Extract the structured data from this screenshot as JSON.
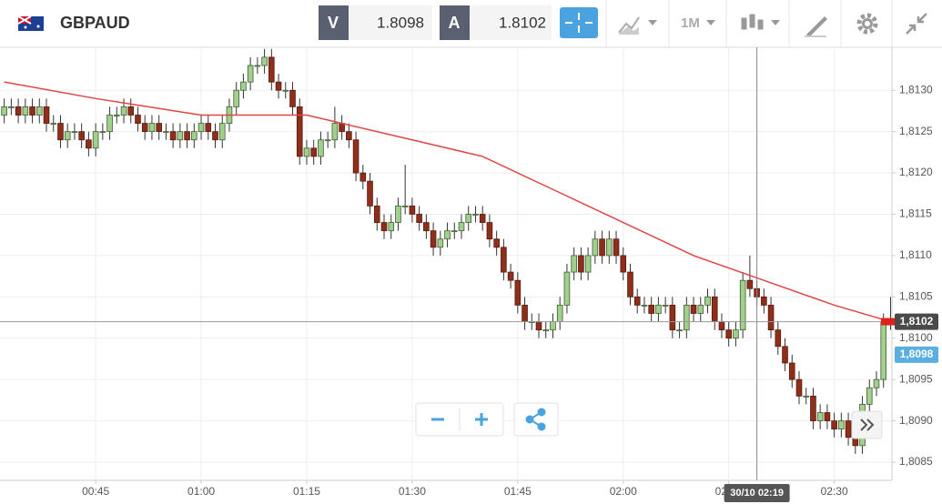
{
  "toolbar": {
    "symbol": "GBPAUD",
    "bid_label": "V",
    "bid": "1.8098",
    "ask_label": "A",
    "ask": "1.8102",
    "timeframe": "1M"
  },
  "chart_data": {
    "type": "candlestick",
    "x": [
      32,
      33,
      34,
      35,
      36,
      37,
      38,
      39,
      40,
      41,
      42,
      43,
      44,
      45,
      46,
      47,
      48,
      49,
      50,
      51,
      52,
      53,
      54,
      55,
      56,
      57,
      58,
      59,
      60,
      61,
      62,
      63,
      64,
      65,
      66,
      67,
      68,
      69,
      70,
      71,
      72,
      73,
      74,
      75,
      76,
      77,
      78,
      79,
      80,
      81,
      82,
      83,
      84,
      85,
      86,
      87,
      88,
      89,
      90,
      91,
      92,
      93,
      94,
      95,
      96,
      97,
      98,
      99,
      100,
      101,
      102,
      103,
      104,
      105,
      106,
      107,
      108,
      109,
      110,
      111,
      112,
      113,
      114,
      115,
      116,
      117,
      118,
      119,
      120,
      121,
      122,
      123,
      124,
      125,
      126,
      127,
      128,
      129,
      130,
      131,
      132,
      133,
      134,
      135,
      136,
      137,
      138,
      139,
      140,
      141,
      142,
      143,
      144,
      145,
      146,
      147,
      148,
      149,
      150,
      151,
      152,
      153,
      154,
      155,
      156,
      157,
      158
    ],
    "open": [
      1.8127,
      1.8128,
      1.8128,
      1.8127,
      1.8128,
      1.8127,
      1.8128,
      1.8126,
      1.8126,
      1.8124,
      1.8125,
      1.8125,
      1.8124,
      1.8123,
      1.8125,
      1.8125,
      1.8127,
      1.8127,
      1.8128,
      1.8127,
      1.8126,
      1.8125,
      1.8126,
      1.8125,
      1.8125,
      1.8124,
      1.8125,
      1.8124,
      1.8125,
      1.8126,
      1.8125,
      1.8124,
      1.8126,
      1.8128,
      1.813,
      1.8131,
      1.8133,
      1.8133,
      1.8134,
      1.8131,
      1.813,
      1.813,
      1.8128,
      1.8122,
      1.8123,
      1.8122,
      1.8124,
      1.8124,
      1.8126,
      1.8125,
      1.8124,
      1.812,
      1.8119,
      1.8116,
      1.8114,
      1.8113,
      1.8114,
      1.8116,
      1.8116,
      1.8115,
      1.8114,
      1.8113,
      1.8111,
      1.8112,
      1.8113,
      1.8113,
      1.8114,
      1.8115,
      1.8115,
      1.8114,
      1.8112,
      1.8111,
      1.8108,
      1.8107,
      1.8104,
      1.8102,
      1.8102,
      1.8101,
      1.8101,
      1.8102,
      1.8104,
      1.8108,
      1.811,
      1.8108,
      1.811,
      1.8112,
      1.811,
      1.8112,
      1.811,
      1.8108,
      1.8105,
      1.8104,
      1.8104,
      1.8103,
      1.8104,
      1.8104,
      1.8101,
      1.8101,
      1.8104,
      1.8103,
      1.8104,
      1.8105,
      1.8102,
      1.8101,
      1.81,
      1.8101,
      1.8107,
      1.8106,
      1.8105,
      1.8104,
      1.8101,
      1.8099,
      1.8097,
      1.8095,
      1.8093,
      1.8093,
      1.809,
      1.8091,
      1.809,
      1.8089,
      1.809,
      1.8088,
      1.8087,
      1.8092,
      1.8094,
      1.8095,
      1.8102
    ],
    "high": [
      1.8129,
      1.8129,
      1.8129,
      1.8129,
      1.8129,
      1.8129,
      1.8129,
      1.8127,
      1.8127,
      1.8126,
      1.8126,
      1.8126,
      1.8125,
      1.8126,
      1.8126,
      1.8128,
      1.8128,
      1.8129,
      1.8129,
      1.8128,
      1.8127,
      1.8127,
      1.8127,
      1.8126,
      1.8126,
      1.8126,
      1.8126,
      1.8126,
      1.8127,
      1.8127,
      1.8126,
      1.8127,
      1.8129,
      1.8131,
      1.8132,
      1.8134,
      1.8134,
      1.8135,
      1.8135,
      1.8132,
      1.8131,
      1.8131,
      1.8129,
      1.8124,
      1.8124,
      1.8125,
      1.8125,
      1.8128,
      1.8127,
      1.8126,
      1.8125,
      1.8121,
      1.812,
      1.8117,
      1.8115,
      1.8115,
      1.8117,
      1.8121,
      1.8117,
      1.8116,
      1.8115,
      1.8114,
      1.8113,
      1.8114,
      1.8114,
      1.8115,
      1.8116,
      1.8116,
      1.8116,
      1.8115,
      1.8113,
      1.8112,
      1.8109,
      1.8108,
      1.8105,
      1.8103,
      1.8103,
      1.8102,
      1.8103,
      1.8105,
      1.8109,
      1.8111,
      1.8111,
      1.8111,
      1.8113,
      1.8113,
      1.8113,
      1.8113,
      1.8111,
      1.8109,
      1.8106,
      1.8105,
      1.8105,
      1.8105,
      1.8105,
      1.8105,
      1.8102,
      1.8105,
      1.8105,
      1.8105,
      1.8106,
      1.8106,
      1.8103,
      1.8102,
      1.8102,
      1.8108,
      1.811,
      1.8107,
      1.8106,
      1.8105,
      1.8102,
      1.81,
      1.8098,
      1.8096,
      1.8094,
      1.8094,
      1.8092,
      1.8092,
      1.8091,
      1.8091,
      1.8091,
      1.8088,
      1.8093,
      1.8095,
      1.8096,
      1.8103,
      1.8105
    ],
    "low": [
      1.8126,
      1.8127,
      1.8126,
      1.8126,
      1.8126,
      1.8126,
      1.8125,
      1.8125,
      1.8123,
      1.8123,
      1.8124,
      1.8123,
      1.8122,
      1.8122,
      1.8124,
      1.8124,
      1.8126,
      1.8126,
      1.8126,
      1.8125,
      1.8124,
      1.8124,
      1.8124,
      1.8124,
      1.8123,
      1.8123,
      1.8123,
      1.8123,
      1.8124,
      1.8124,
      1.8123,
      1.8123,
      1.8125,
      1.8127,
      1.8129,
      1.813,
      1.8132,
      1.8132,
      1.813,
      1.8129,
      1.8129,
      1.8127,
      1.8121,
      1.8121,
      1.8121,
      1.8121,
      1.8123,
      1.8123,
      1.8124,
      1.8123,
      1.8119,
      1.8118,
      1.8115,
      1.8113,
      1.8112,
      1.8112,
      1.8113,
      1.8115,
      1.8114,
      1.8113,
      1.8112,
      1.811,
      1.811,
      1.8111,
      1.8112,
      1.8112,
      1.8113,
      1.8114,
      1.8113,
      1.8111,
      1.811,
      1.8107,
      1.8106,
      1.8103,
      1.8101,
      1.8101,
      1.81,
      1.81,
      1.81,
      1.8101,
      1.8103,
      1.8107,
      1.8107,
      1.8107,
      1.8109,
      1.8109,
      1.8109,
      1.8109,
      1.8107,
      1.8104,
      1.8103,
      1.8103,
      1.8102,
      1.8102,
      1.8103,
      1.81,
      1.81,
      1.81,
      1.8102,
      1.8102,
      1.8103,
      1.8101,
      1.81,
      1.8099,
      1.8099,
      1.81,
      1.8105,
      1.8104,
      1.8103,
      1.81,
      1.8098,
      1.8096,
      1.8094,
      1.8092,
      1.8092,
      1.8089,
      1.8089,
      1.8089,
      1.8088,
      1.8088,
      1.8087,
      1.8086,
      1.8086,
      1.8091,
      1.8093,
      1.8094,
      1.8101
    ],
    "close": [
      1.8128,
      1.8128,
      1.8127,
      1.8128,
      1.8127,
      1.8128,
      1.8126,
      1.8126,
      1.8124,
      1.8125,
      1.8125,
      1.8124,
      1.8123,
      1.8125,
      1.8125,
      1.8127,
      1.8127,
      1.8128,
      1.8127,
      1.8126,
      1.8125,
      1.8126,
      1.8125,
      1.8125,
      1.8124,
      1.8125,
      1.8124,
      1.8125,
      1.8126,
      1.8125,
      1.8124,
      1.8126,
      1.8128,
      1.813,
      1.8131,
      1.8133,
      1.8133,
      1.8134,
      1.8131,
      1.813,
      1.813,
      1.8128,
      1.8122,
      1.8123,
      1.8122,
      1.8124,
      1.8124,
      1.8126,
      1.8125,
      1.8124,
      1.812,
      1.8119,
      1.8116,
      1.8114,
      1.8113,
      1.8114,
      1.8116,
      1.8116,
      1.8115,
      1.8114,
      1.8113,
      1.8111,
      1.8112,
      1.8113,
      1.8113,
      1.8114,
      1.8115,
      1.8115,
      1.8114,
      1.8112,
      1.8111,
      1.8108,
      1.8107,
      1.8104,
      1.8102,
      1.8102,
      1.8101,
      1.8101,
      1.8102,
      1.8104,
      1.8108,
      1.811,
      1.8108,
      1.811,
      1.8112,
      1.811,
      1.8112,
      1.811,
      1.8108,
      1.8105,
      1.8104,
      1.8104,
      1.8103,
      1.8104,
      1.8104,
      1.8101,
      1.8101,
      1.8104,
      1.8103,
      1.8104,
      1.8105,
      1.8102,
      1.8101,
      1.81,
      1.8101,
      1.8107,
      1.8106,
      1.8105,
      1.8104,
      1.8101,
      1.8099,
      1.8097,
      1.8095,
      1.8093,
      1.8093,
      1.809,
      1.8091,
      1.809,
      1.8089,
      1.809,
      1.8088,
      1.8087,
      1.8092,
      1.8094,
      1.8095,
      1.8102,
      1.8102
    ],
    "up_color": "#a3cf8e",
    "down_color": "#8e2f1c",
    "ma": {
      "x": [
        32,
        45,
        60,
        68,
        75,
        90,
        100,
        110,
        120,
        130,
        140,
        150,
        158
      ],
      "values": [
        1.8131,
        1.8129,
        1.8127,
        1.8127,
        1.8127,
        1.8124,
        1.8122,
        1.8118,
        1.8114,
        1.811,
        1.8107,
        1.8104,
        1.8102
      ],
      "color": "#e04545"
    },
    "xlim": [
      31.4,
      158.2
    ],
    "xticks": [
      {
        "value": 45,
        "label": "00:45"
      },
      {
        "value": 60,
        "label": "01:00"
      },
      {
        "value": 75,
        "label": "01:15"
      },
      {
        "value": 90,
        "label": "01:30"
      },
      {
        "value": 105,
        "label": "01:45"
      },
      {
        "value": 120,
        "label": "02:00"
      },
      {
        "value": 135,
        "label": "02:15"
      },
      {
        "value": 150,
        "label": "02:30"
      }
    ],
    "ylim": [
      1.80828,
      1.81352
    ],
    "yticks": [
      {
        "value": 1.8085,
        "label": "1,8085"
      },
      {
        "value": 1.809,
        "label": "1,8090"
      },
      {
        "value": 1.8095,
        "label": "1,8095"
      },
      {
        "value": 1.81,
        "label": "1,8100"
      },
      {
        "value": 1.8105,
        "label": "1,8105"
      },
      {
        "value": 1.811,
        "label": "1,8110"
      },
      {
        "value": 1.8115,
        "label": "1,8115"
      },
      {
        "value": 1.812,
        "label": "1,8120"
      },
      {
        "value": 1.8125,
        "label": "1,8125"
      },
      {
        "value": 1.813,
        "label": "1,8130"
      }
    ],
    "grid": true,
    "price_tags": [
      {
        "value": 1.8102,
        "label": "1,8102",
        "color": "#4a4a4a"
      },
      {
        "value": 1.8098,
        "label": "1,8098",
        "color": "#5aaee0"
      }
    ],
    "crosshair": {
      "x": 139,
      "label": "30/10 02:19"
    }
  }
}
